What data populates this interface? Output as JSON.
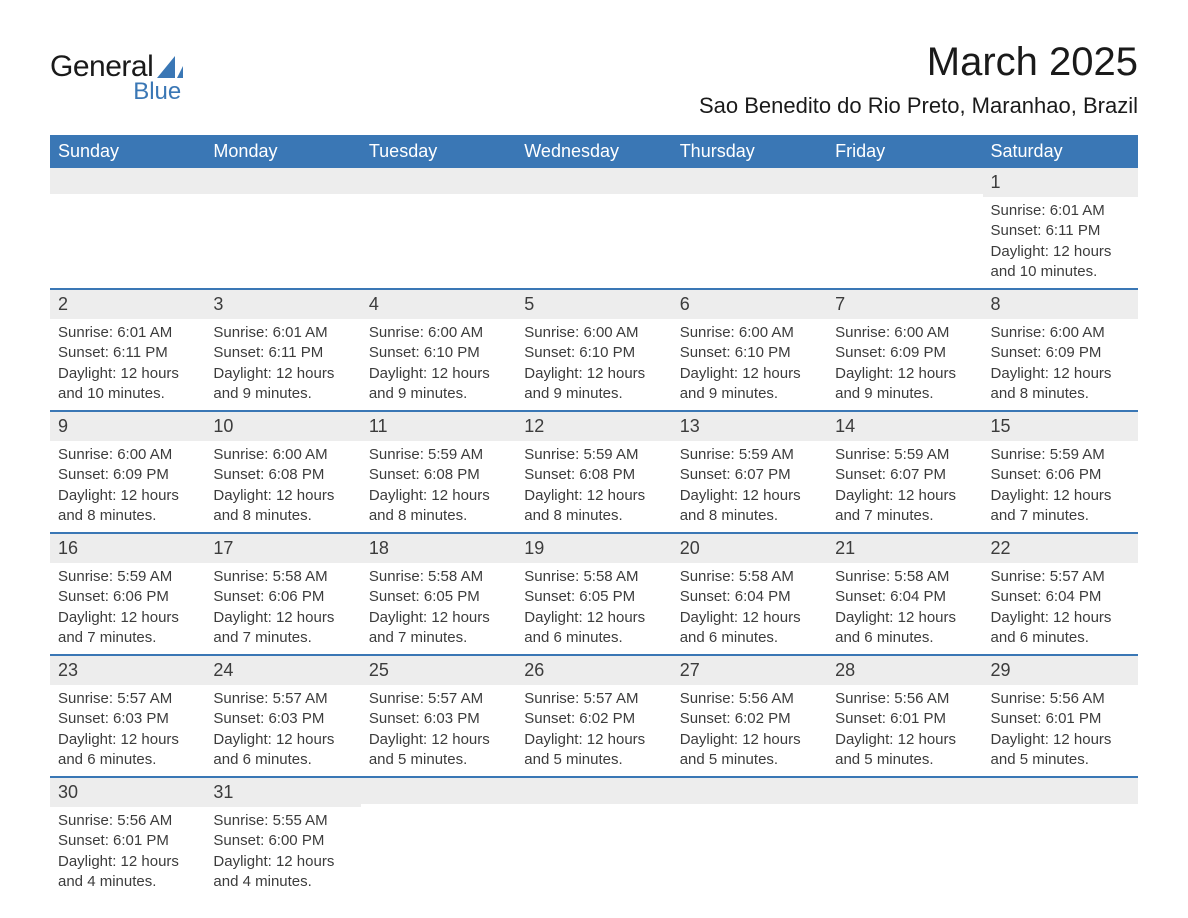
{
  "logo": {
    "general": "General",
    "blue": "Blue",
    "color": "#3a77b5"
  },
  "title": "March 2025",
  "location": "Sao Benedito do Rio Preto, Maranhao, Brazil",
  "header_bg": "#3a77b5",
  "row_sep": "#3a77b5",
  "daynum_bg": "#ededed",
  "text_color": "#3c3c3c",
  "dayHeaders": [
    "Sunday",
    "Monday",
    "Tuesday",
    "Wednesday",
    "Thursday",
    "Friday",
    "Saturday"
  ],
  "weeks": [
    [
      {
        "n": "",
        "sr": "",
        "ss": "",
        "dl": ""
      },
      {
        "n": "",
        "sr": "",
        "ss": "",
        "dl": ""
      },
      {
        "n": "",
        "sr": "",
        "ss": "",
        "dl": ""
      },
      {
        "n": "",
        "sr": "",
        "ss": "",
        "dl": ""
      },
      {
        "n": "",
        "sr": "",
        "ss": "",
        "dl": ""
      },
      {
        "n": "",
        "sr": "",
        "ss": "",
        "dl": ""
      },
      {
        "n": "1",
        "sr": "Sunrise: 6:01 AM",
        "ss": "Sunset: 6:11 PM",
        "dl": "Daylight: 12 hours and 10 minutes."
      }
    ],
    [
      {
        "n": "2",
        "sr": "Sunrise: 6:01 AM",
        "ss": "Sunset: 6:11 PM",
        "dl": "Daylight: 12 hours and 10 minutes."
      },
      {
        "n": "3",
        "sr": "Sunrise: 6:01 AM",
        "ss": "Sunset: 6:11 PM",
        "dl": "Daylight: 12 hours and 9 minutes."
      },
      {
        "n": "4",
        "sr": "Sunrise: 6:00 AM",
        "ss": "Sunset: 6:10 PM",
        "dl": "Daylight: 12 hours and 9 minutes."
      },
      {
        "n": "5",
        "sr": "Sunrise: 6:00 AM",
        "ss": "Sunset: 6:10 PM",
        "dl": "Daylight: 12 hours and 9 minutes."
      },
      {
        "n": "6",
        "sr": "Sunrise: 6:00 AM",
        "ss": "Sunset: 6:10 PM",
        "dl": "Daylight: 12 hours and 9 minutes."
      },
      {
        "n": "7",
        "sr": "Sunrise: 6:00 AM",
        "ss": "Sunset: 6:09 PM",
        "dl": "Daylight: 12 hours and 9 minutes."
      },
      {
        "n": "8",
        "sr": "Sunrise: 6:00 AM",
        "ss": "Sunset: 6:09 PM",
        "dl": "Daylight: 12 hours and 8 minutes."
      }
    ],
    [
      {
        "n": "9",
        "sr": "Sunrise: 6:00 AM",
        "ss": "Sunset: 6:09 PM",
        "dl": "Daylight: 12 hours and 8 minutes."
      },
      {
        "n": "10",
        "sr": "Sunrise: 6:00 AM",
        "ss": "Sunset: 6:08 PM",
        "dl": "Daylight: 12 hours and 8 minutes."
      },
      {
        "n": "11",
        "sr": "Sunrise: 5:59 AM",
        "ss": "Sunset: 6:08 PM",
        "dl": "Daylight: 12 hours and 8 minutes."
      },
      {
        "n": "12",
        "sr": "Sunrise: 5:59 AM",
        "ss": "Sunset: 6:08 PM",
        "dl": "Daylight: 12 hours and 8 minutes."
      },
      {
        "n": "13",
        "sr": "Sunrise: 5:59 AM",
        "ss": "Sunset: 6:07 PM",
        "dl": "Daylight: 12 hours and 8 minutes."
      },
      {
        "n": "14",
        "sr": "Sunrise: 5:59 AM",
        "ss": "Sunset: 6:07 PM",
        "dl": "Daylight: 12 hours and 7 minutes."
      },
      {
        "n": "15",
        "sr": "Sunrise: 5:59 AM",
        "ss": "Sunset: 6:06 PM",
        "dl": "Daylight: 12 hours and 7 minutes."
      }
    ],
    [
      {
        "n": "16",
        "sr": "Sunrise: 5:59 AM",
        "ss": "Sunset: 6:06 PM",
        "dl": "Daylight: 12 hours and 7 minutes."
      },
      {
        "n": "17",
        "sr": "Sunrise: 5:58 AM",
        "ss": "Sunset: 6:06 PM",
        "dl": "Daylight: 12 hours and 7 minutes."
      },
      {
        "n": "18",
        "sr": "Sunrise: 5:58 AM",
        "ss": "Sunset: 6:05 PM",
        "dl": "Daylight: 12 hours and 7 minutes."
      },
      {
        "n": "19",
        "sr": "Sunrise: 5:58 AM",
        "ss": "Sunset: 6:05 PM",
        "dl": "Daylight: 12 hours and 6 minutes."
      },
      {
        "n": "20",
        "sr": "Sunrise: 5:58 AM",
        "ss": "Sunset: 6:04 PM",
        "dl": "Daylight: 12 hours and 6 minutes."
      },
      {
        "n": "21",
        "sr": "Sunrise: 5:58 AM",
        "ss": "Sunset: 6:04 PM",
        "dl": "Daylight: 12 hours and 6 minutes."
      },
      {
        "n": "22",
        "sr": "Sunrise: 5:57 AM",
        "ss": "Sunset: 6:04 PM",
        "dl": "Daylight: 12 hours and 6 minutes."
      }
    ],
    [
      {
        "n": "23",
        "sr": "Sunrise: 5:57 AM",
        "ss": "Sunset: 6:03 PM",
        "dl": "Daylight: 12 hours and 6 minutes."
      },
      {
        "n": "24",
        "sr": "Sunrise: 5:57 AM",
        "ss": "Sunset: 6:03 PM",
        "dl": "Daylight: 12 hours and 6 minutes."
      },
      {
        "n": "25",
        "sr": "Sunrise: 5:57 AM",
        "ss": "Sunset: 6:03 PM",
        "dl": "Daylight: 12 hours and 5 minutes."
      },
      {
        "n": "26",
        "sr": "Sunrise: 5:57 AM",
        "ss": "Sunset: 6:02 PM",
        "dl": "Daylight: 12 hours and 5 minutes."
      },
      {
        "n": "27",
        "sr": "Sunrise: 5:56 AM",
        "ss": "Sunset: 6:02 PM",
        "dl": "Daylight: 12 hours and 5 minutes."
      },
      {
        "n": "28",
        "sr": "Sunrise: 5:56 AM",
        "ss": "Sunset: 6:01 PM",
        "dl": "Daylight: 12 hours and 5 minutes."
      },
      {
        "n": "29",
        "sr": "Sunrise: 5:56 AM",
        "ss": "Sunset: 6:01 PM",
        "dl": "Daylight: 12 hours and 5 minutes."
      }
    ],
    [
      {
        "n": "30",
        "sr": "Sunrise: 5:56 AM",
        "ss": "Sunset: 6:01 PM",
        "dl": "Daylight: 12 hours and 4 minutes."
      },
      {
        "n": "31",
        "sr": "Sunrise: 5:55 AM",
        "ss": "Sunset: 6:00 PM",
        "dl": "Daylight: 12 hours and 4 minutes."
      },
      {
        "n": "",
        "sr": "",
        "ss": "",
        "dl": ""
      },
      {
        "n": "",
        "sr": "",
        "ss": "",
        "dl": ""
      },
      {
        "n": "",
        "sr": "",
        "ss": "",
        "dl": ""
      },
      {
        "n": "",
        "sr": "",
        "ss": "",
        "dl": ""
      },
      {
        "n": "",
        "sr": "",
        "ss": "",
        "dl": ""
      }
    ]
  ]
}
